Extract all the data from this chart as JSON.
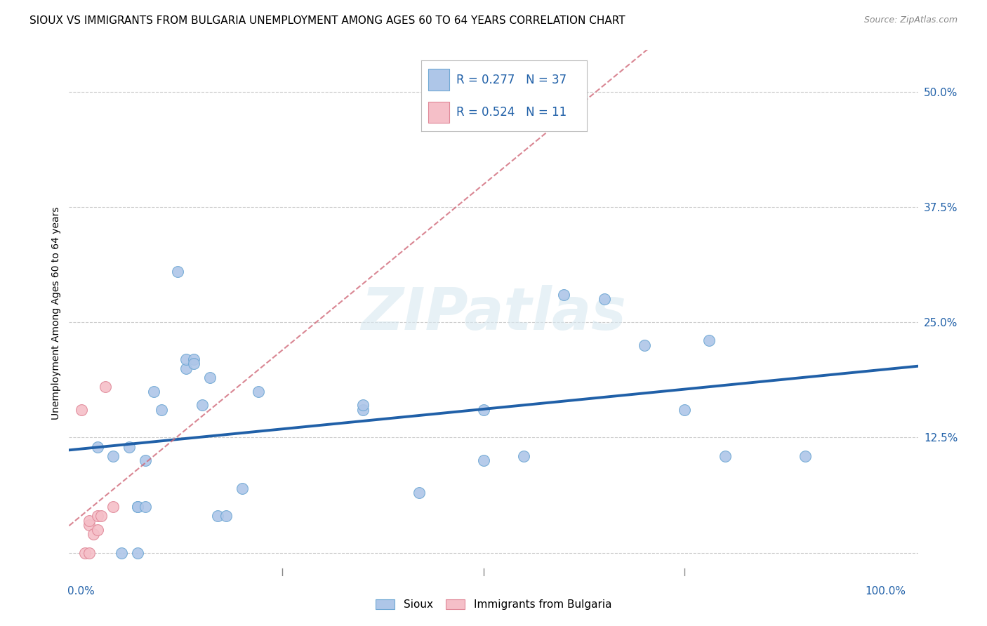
{
  "title": "SIOUX VS IMMIGRANTS FROM BULGARIA UNEMPLOYMENT AMONG AGES 60 TO 64 YEARS CORRELATION CHART",
  "source": "Source: ZipAtlas.com",
  "ylabel_label": "Unemployment Among Ages 60 to 64 years",
  "ytick_values": [
    0.0,
    0.125,
    0.25,
    0.375,
    0.5
  ],
  "ytick_labels": [
    "",
    "12.5%",
    "25.0%",
    "37.5%",
    "50.0%"
  ],
  "xtick_minor": [
    0.25,
    0.5,
    0.75
  ],
  "xlim": [
    -0.015,
    1.04
  ],
  "ylim": [
    -0.025,
    0.545
  ],
  "watermark": "ZIPatlas",
  "sioux_color": "#aec6e8",
  "sioux_edge": "#6fa8d4",
  "bulgaria_color": "#f5bfc8",
  "bulgaria_edge": "#e08898",
  "trend_sioux_color": "#2060a8",
  "trend_bulgaria_color": "#d06878",
  "sioux_x": [
    0.02,
    0.04,
    0.05,
    0.06,
    0.07,
    0.07,
    0.07,
    0.08,
    0.08,
    0.09,
    0.1,
    0.12,
    0.13,
    0.13,
    0.14,
    0.14,
    0.15,
    0.16,
    0.17,
    0.18,
    0.2,
    0.22,
    0.35,
    0.35,
    0.42,
    0.5,
    0.5,
    0.55,
    0.6,
    0.65,
    0.7,
    0.75,
    0.78,
    0.8,
    0.9
  ],
  "sioux_y": [
    0.115,
    0.105,
    0.0,
    0.115,
    0.0,
    0.05,
    0.05,
    0.05,
    0.1,
    0.175,
    0.155,
    0.305,
    0.2,
    0.21,
    0.21,
    0.205,
    0.16,
    0.19,
    0.04,
    0.04,
    0.07,
    0.175,
    0.155,
    0.16,
    0.065,
    0.1,
    0.155,
    0.105,
    0.28,
    0.275,
    0.225,
    0.155,
    0.23,
    0.105,
    0.105
  ],
  "bulgaria_x": [
    0.0,
    0.005,
    0.01,
    0.01,
    0.01,
    0.015,
    0.02,
    0.02,
    0.025,
    0.03,
    0.04
  ],
  "bulgaria_y": [
    0.155,
    0.0,
    0.0,
    0.03,
    0.035,
    0.02,
    0.025,
    0.04,
    0.04,
    0.18,
    0.05
  ],
  "grid_color": "#cccccc",
  "background_color": "#ffffff",
  "title_fontsize": 11,
  "source_fontsize": 9,
  "axis_label_fontsize": 10,
  "tick_fontsize": 11,
  "marker_size": 130
}
